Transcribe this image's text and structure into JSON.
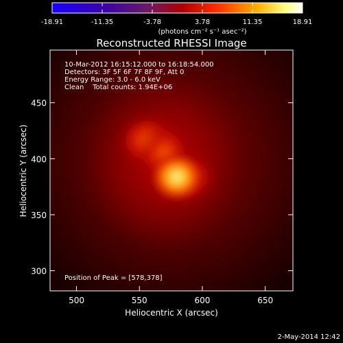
{
  "chart_data": {
    "type": "heatmap",
    "title": "Reconstructed RHESSI Image",
    "xlabel": "Heliocentric X (arcsec)",
    "ylabel": "Heliocentric Y (arcsec)",
    "xlim": [
      479,
      672
    ],
    "ylim": [
      282,
      497
    ],
    "xticks": [
      500,
      550,
      600,
      650
    ],
    "yticks": [
      300,
      350,
      400,
      450
    ],
    "colorbar": {
      "ticks": [
        "-18.91",
        "-11.35",
        "-3.78",
        "3.78",
        "11.35",
        "18.91"
      ],
      "range": [
        -18.91,
        18.91
      ],
      "unit_label": "(photons cm⁻² s⁻¹ asec⁻²)",
      "stops": [
        "#1a00ff",
        "#3b00aa",
        "#6a1a66",
        "#b00000",
        "#ff3000",
        "#ffb000",
        "#ffff80",
        "#ffffff"
      ]
    },
    "annotations": [
      "10-Mar-2012 16:15:12.000 to 16:18:54.000",
      "Detectors: 3F 5F 6F 7F 8F 9F, Att 0",
      "Energy Range: 3.0 - 6.0 keV",
      "Clean    Total counts: 1.94E+06"
    ],
    "peak_label": "Position of Peak = [578,378]",
    "peak": [
      578,
      378
    ],
    "grid": false,
    "legend": "none"
  },
  "footer": {
    "date": "2-May-2014 12:42"
  }
}
